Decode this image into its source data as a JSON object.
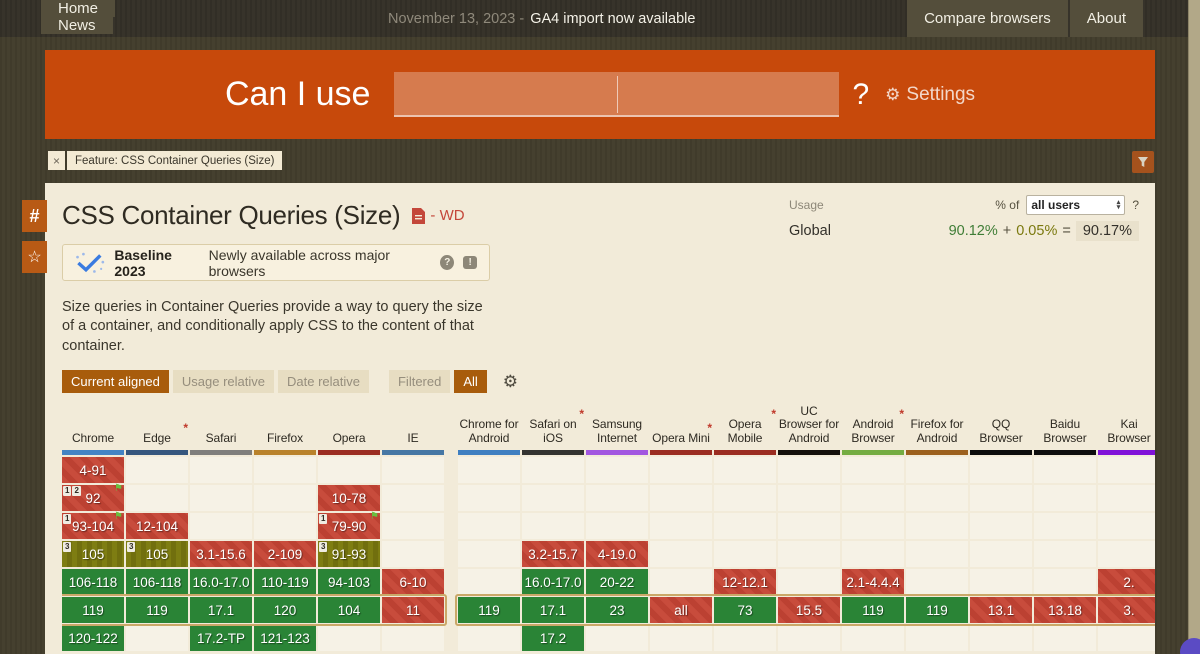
{
  "topnav": {
    "left": [
      {
        "label": "Home"
      },
      {
        "label": "News"
      }
    ],
    "date": "November 13, 2023 -",
    "announcement": "GA4 import now available",
    "right": [
      {
        "label": "Compare browsers"
      },
      {
        "label": "About"
      }
    ]
  },
  "hero": {
    "title": "Can I use",
    "question_mark": "?",
    "settings_label": "Settings"
  },
  "feature_filter": {
    "close": "×",
    "label": "Feature: CSS Container Queries (Size)"
  },
  "page": {
    "title": "CSS Container Queries (Size)",
    "spec_status": "- WD",
    "usage": {
      "label": "Usage",
      "percent_of": "% of",
      "select_value": "all users",
      "help": "?",
      "region": "Global",
      "value_main": "90.12%",
      "plus": "+",
      "value_secondary": "0.05%",
      "equals": "=",
      "total": "90.17%"
    },
    "baseline": {
      "title": "Baseline 2023",
      "subtitle": "Newly available across major browsers",
      "help": "?",
      "feedback": "!"
    },
    "description": "Size queries in Container Queries provide a way to query the size of a container, and conditionally apply CSS to the content of that container.",
    "view_controls": [
      {
        "label": "Current aligned",
        "active": true
      },
      {
        "label": "Usage relative",
        "active": false
      },
      {
        "label": "Date relative",
        "active": false
      }
    ],
    "filter_controls": [
      {
        "label": "Filtered",
        "active": false
      },
      {
        "label": "All",
        "active": true
      }
    ]
  },
  "icons": {
    "gear": "⚙",
    "flag": "⚑",
    "star": "☆",
    "hash": "#",
    "select_up": "▴",
    "select_down": "▾"
  },
  "colors": {
    "supported": "#2a8436",
    "unsupported": "#c4483b",
    "partial": "#7e7d12",
    "accent_orange": "#c7490b",
    "current_row_outline": "#caa868"
  },
  "table": {
    "row_count": 7,
    "current_row": 6,
    "groups": [
      {
        "name": "desktop",
        "browsers": [
          {
            "name": "Chrome",
            "underline": "#4484c4",
            "note": false,
            "cells": [
              {
                "row": 1,
                "text": "4-91",
                "type": "red"
              },
              {
                "row": 2,
                "text": "92",
                "type": "red",
                "badges": [
                  "1",
                  "2"
                ],
                "flag": true
              },
              {
                "row": 3,
                "text": "93-104",
                "type": "red",
                "badges": [
                  "1"
                ],
                "flag": true
              },
              {
                "row": 4,
                "text": "105",
                "type": "olive",
                "badges": [
                  "3"
                ]
              },
              {
                "row": 5,
                "text": "106-118",
                "type": "green"
              },
              {
                "row": 6,
                "text": "119",
                "type": "green"
              },
              {
                "row": 7,
                "text": "120-122",
                "type": "green"
              }
            ]
          },
          {
            "name": "Edge",
            "underline": "#36577e",
            "note": true,
            "cells": [
              {
                "row": 3,
                "text": "12-104",
                "type": "red"
              },
              {
                "row": 4,
                "text": "105",
                "type": "olive",
                "badges": [
                  "3"
                ]
              },
              {
                "row": 5,
                "text": "106-118",
                "type": "green"
              },
              {
                "row": 6,
                "text": "119",
                "type": "green"
              }
            ]
          },
          {
            "name": "Safari",
            "underline": "#7f7e7c",
            "note": false,
            "cells": [
              {
                "row": 4,
                "text": "3.1-15.6",
                "type": "red"
              },
              {
                "row": 5,
                "text": "16.0-17.0",
                "type": "green"
              },
              {
                "row": 6,
                "text": "17.1",
                "type": "green"
              },
              {
                "row": 7,
                "text": "17.2-TP",
                "type": "green"
              }
            ]
          },
          {
            "name": "Firefox",
            "underline": "#b9822b",
            "note": false,
            "cells": [
              {
                "row": 4,
                "text": "2-109",
                "type": "red"
              },
              {
                "row": 5,
                "text": "110-119",
                "type": "green"
              },
              {
                "row": 6,
                "text": "120",
                "type": "green"
              },
              {
                "row": 7,
                "text": "121-123",
                "type": "green"
              }
            ]
          },
          {
            "name": "Opera",
            "underline": "#9b2d21",
            "note": false,
            "cells": [
              {
                "row": 2,
                "text": "10-78",
                "type": "red"
              },
              {
                "row": 3,
                "text": "79-90",
                "type": "red",
                "badges": [
                  "1"
                ],
                "flag": true
              },
              {
                "row": 4,
                "text": "91-93",
                "type": "olive",
                "badges": [
                  "3"
                ]
              },
              {
                "row": 5,
                "text": "94-103",
                "type": "green"
              },
              {
                "row": 6,
                "text": "104",
                "type": "green"
              }
            ]
          },
          {
            "name": "IE",
            "underline": "#4677a4",
            "note": false,
            "cells": [
              {
                "row": 5,
                "text": "6-10",
                "type": "red"
              },
              {
                "row": 6,
                "text": "11",
                "type": "red"
              }
            ]
          }
        ]
      },
      {
        "name": "mobile",
        "browsers": [
          {
            "name": "Chrome for Android",
            "underline": "#3f7fc1",
            "note": false,
            "cells": [
              {
                "row": 6,
                "text": "119",
                "type": "green"
              }
            ]
          },
          {
            "name": "Safari on iOS",
            "underline": "#333330",
            "note": true,
            "cells": [
              {
                "row": 4,
                "text": "3.2-15.7",
                "type": "red"
              },
              {
                "row": 5,
                "text": "16.0-17.0",
                "type": "green"
              },
              {
                "row": 6,
                "text": "17.1",
                "type": "green"
              },
              {
                "row": 7,
                "text": "17.2",
                "type": "green"
              }
            ]
          },
          {
            "name": "Samsung Internet",
            "underline": "#a257e0",
            "note": false,
            "cells": [
              {
                "row": 4,
                "text": "4-19.0",
                "type": "red"
              },
              {
                "row": 5,
                "text": "20-22",
                "type": "green"
              },
              {
                "row": 6,
                "text": "23",
                "type": "green"
              }
            ]
          },
          {
            "name": "Opera Mini",
            "underline": "#9b2d21",
            "note": true,
            "cells": [
              {
                "row": 6,
                "text": "all",
                "type": "red"
              }
            ]
          },
          {
            "name": "Opera Mobile",
            "underline": "#9b2d21",
            "note": true,
            "cells": [
              {
                "row": 5,
                "text": "12-12.1",
                "type": "red"
              },
              {
                "row": 6,
                "text": "73",
                "type": "green"
              }
            ]
          },
          {
            "name": "UC Browser for Android",
            "underline": "#15110c",
            "note": false,
            "cells": [
              {
                "row": 6,
                "text": "15.5",
                "type": "red"
              }
            ]
          },
          {
            "name": "Android Browser",
            "underline": "#74ac41",
            "note": true,
            "cells": [
              {
                "row": 5,
                "text": "2.1-4.4.4",
                "type": "red"
              },
              {
                "row": 6,
                "text": "119",
                "type": "green"
              }
            ]
          },
          {
            "name": "Firefox for Android",
            "underline": "#9c601d",
            "note": false,
            "cells": [
              {
                "row": 6,
                "text": "119",
                "type": "green"
              }
            ]
          },
          {
            "name": "QQ Browser",
            "underline": "#0c0c0c",
            "note": false,
            "cells": [
              {
                "row": 6,
                "text": "13.1",
                "type": "red"
              }
            ]
          },
          {
            "name": "Baidu Browser",
            "underline": "#0e0e0e",
            "note": false,
            "cells": [
              {
                "row": 6,
                "text": "13.18",
                "type": "red"
              }
            ]
          },
          {
            "name": "Kai Browser",
            "underline": "#8012d8",
            "note": false,
            "cells": [
              {
                "row": 5,
                "text": "2.",
                "type": "red"
              },
              {
                "row": 6,
                "text": "3.",
                "type": "red"
              }
            ]
          }
        ]
      }
    ]
  }
}
